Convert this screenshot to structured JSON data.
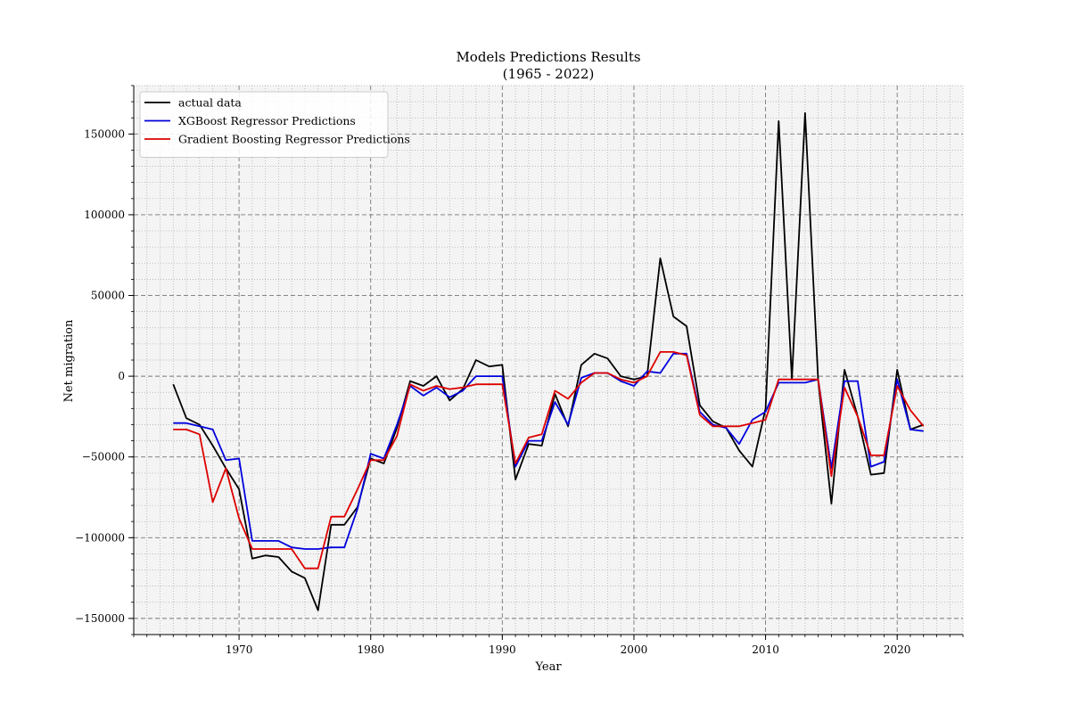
{
  "chart_data": {
    "type": "line",
    "title": "Models Predictions Results",
    "subtitle": "(1965 - 2022)",
    "xlabel": "Year",
    "ylabel": "Net migration",
    "xlim": [
      1962,
      2025
    ],
    "ylim": [
      -160000,
      180000
    ],
    "x_ticks": [
      1970,
      1980,
      1990,
      2000,
      2010,
      2020
    ],
    "x_tick_labels": [
      "1970",
      "1980",
      "1990",
      "2000",
      "2010",
      "2020"
    ],
    "y_ticks": [
      -150000,
      -100000,
      -50000,
      0,
      50000,
      100000,
      150000
    ],
    "y_tick_labels": [
      "−150000",
      "−100000",
      "−50000",
      "0",
      "50000",
      "100000",
      "150000"
    ],
    "x_minor_step": 1,
    "y_minor_step": 10000,
    "grid": true,
    "background": "#f4f4f4",
    "legend_position": "top-left",
    "x": [
      1965,
      1966,
      1967,
      1968,
      1969,
      1970,
      1971,
      1972,
      1973,
      1974,
      1975,
      1976,
      1977,
      1978,
      1979,
      1980,
      1981,
      1982,
      1983,
      1984,
      1985,
      1986,
      1987,
      1988,
      1989,
      1990,
      1991,
      1992,
      1993,
      1994,
      1995,
      1996,
      1997,
      1998,
      1999,
      2000,
      2001,
      2002,
      2003,
      2004,
      2005,
      2006,
      2007,
      2008,
      2009,
      2010,
      2011,
      2012,
      2013,
      2014,
      2015,
      2016,
      2017,
      2018,
      2019,
      2020,
      2021,
      2022
    ],
    "series": [
      {
        "name": "actual data",
        "color": "#000000",
        "values": [
          -5000,
          -26000,
          -30000,
          -43000,
          -57000,
          -70000,
          -113000,
          -111000,
          -112000,
          -121000,
          -125000,
          -145000,
          -92000,
          -92000,
          -81000,
          -51000,
          -54000,
          -32000,
          -3000,
          -6000,
          0,
          -15000,
          -8000,
          10000,
          6000,
          7000,
          -64000,
          -42000,
          -43000,
          -11000,
          -31000,
          7000,
          14000,
          11000,
          0,
          -2000,
          0,
          73000,
          37000,
          31000,
          -18000,
          -28000,
          -32000,
          -46000,
          -56000,
          -20000,
          158000,
          -2000,
          163000,
          -3000,
          -79000,
          4000,
          -25000,
          -61000,
          -60000,
          4000,
          -33000,
          -30000
        ]
      },
      {
        "name": "XGBoost Regressor Predictions",
        "color": "#0000dd",
        "values": [
          -29000,
          -29000,
          -31000,
          -33000,
          -52000,
          -51000,
          -102000,
          -102000,
          -102000,
          -106000,
          -107000,
          -107000,
          -106000,
          -106000,
          -82000,
          -48000,
          -51000,
          -30000,
          -6000,
          -12000,
          -7000,
          -13000,
          -9000,
          0,
          0,
          0,
          -56000,
          -40000,
          -40000,
          -16000,
          -30000,
          -1000,
          2000,
          2000,
          -3000,
          -6000,
          3000,
          2000,
          14000,
          14000,
          -22000,
          -30000,
          -32000,
          -42000,
          -27000,
          -22000,
          -4000,
          -4000,
          -4000,
          -2000,
          -57000,
          -3000,
          -3000,
          -56000,
          -53000,
          -2000,
          -33000,
          -34000
        ]
      },
      {
        "name": "Gradient Boosting Regressor Predictions",
        "color": "#dd0000",
        "values": [
          -33000,
          -33000,
          -36000,
          -78000,
          -57000,
          -88000,
          -107000,
          -107000,
          -107000,
          -107000,
          -119000,
          -119000,
          -87000,
          -87000,
          -70000,
          -52000,
          -52000,
          -37000,
          -5000,
          -9000,
          -6000,
          -8000,
          -7000,
          -5000,
          -5000,
          -5000,
          -54000,
          -38000,
          -36000,
          -9000,
          -14000,
          -4000,
          2000,
          2000,
          -2000,
          -4000,
          0,
          15000,
          15000,
          13000,
          -24000,
          -31000,
          -31000,
          -31000,
          -29000,
          -27000,
          -2000,
          -2000,
          -2000,
          -2000,
          -62000,
          -7000,
          -25000,
          -49000,
          -49000,
          -6000,
          -21000,
          -31000
        ]
      }
    ]
  }
}
